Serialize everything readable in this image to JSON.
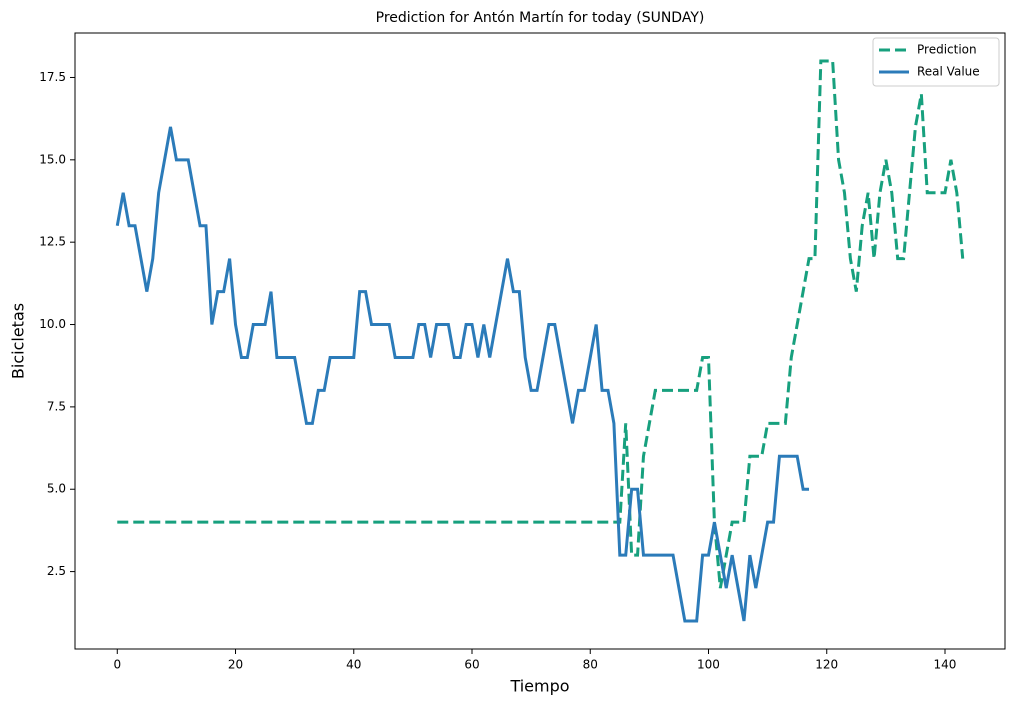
{
  "chart_data": {
    "type": "line",
    "title": "Prediction for Antón Martín for today (SUNDAY)",
    "xlabel": "Tiempo",
    "ylabel": "Bicicletas",
    "x": [
      0,
      1,
      2,
      3,
      4,
      5,
      6,
      7,
      8,
      9,
      10,
      11,
      12,
      13,
      14,
      15,
      16,
      17,
      18,
      19,
      20,
      21,
      22,
      23,
      24,
      25,
      26,
      27,
      28,
      29,
      30,
      31,
      32,
      33,
      34,
      35,
      36,
      37,
      38,
      39,
      40,
      41,
      42,
      43,
      44,
      45,
      46,
      47,
      48,
      49,
      50,
      51,
      52,
      53,
      54,
      55,
      56,
      57,
      58,
      59,
      60,
      61,
      62,
      63,
      64,
      65,
      66,
      67,
      68,
      69,
      70,
      71,
      72,
      73,
      74,
      75,
      76,
      77,
      78,
      79,
      80,
      81,
      82,
      83,
      84,
      85,
      86,
      87,
      88,
      89,
      90,
      91,
      92,
      93,
      94,
      95,
      96,
      97,
      98,
      99,
      100,
      101,
      102,
      103,
      104,
      105,
      106,
      107,
      108,
      109,
      110,
      111,
      112,
      113,
      114,
      115,
      116,
      117,
      118,
      119,
      120,
      121,
      122,
      123,
      124,
      125,
      126,
      127,
      128,
      129,
      130,
      131,
      132,
      133,
      134,
      135,
      136,
      137,
      138,
      139,
      140,
      141,
      142,
      143
    ],
    "series": [
      {
        "name": "Prediction",
        "color": "#17a07e",
        "linestyle": "dashed",
        "values": [
          4,
          4,
          4,
          4,
          4,
          4,
          4,
          4,
          4,
          4,
          4,
          4,
          4,
          4,
          4,
          4,
          4,
          4,
          4,
          4,
          4,
          4,
          4,
          4,
          4,
          4,
          4,
          4,
          4,
          4,
          4,
          4,
          4,
          4,
          4,
          4,
          4,
          4,
          4,
          4,
          4,
          4,
          4,
          4,
          4,
          4,
          4,
          4,
          4,
          4,
          4,
          4,
          4,
          4,
          4,
          4,
          4,
          4,
          4,
          4,
          4,
          4,
          4,
          4,
          4,
          4,
          4,
          4,
          4,
          4,
          4,
          4,
          4,
          4,
          4,
          4,
          4,
          4,
          4,
          4,
          4,
          4,
          4,
          4,
          4,
          4,
          7,
          3,
          3,
          6,
          7,
          8,
          8,
          8,
          8,
          8,
          8,
          8,
          8,
          9,
          9,
          4,
          2,
          3,
          4,
          4,
          4,
          6,
          6,
          6,
          7,
          7,
          7,
          7,
          9,
          10,
          11,
          12,
          12,
          18,
          18,
          18,
          15,
          14,
          12,
          11,
          13,
          14,
          12,
          14,
          15,
          14,
          12,
          12,
          14,
          16,
          17,
          14,
          14,
          14,
          14,
          15,
          14,
          12
        ]
      },
      {
        "name": "Real Value",
        "color": "#2b7bb9",
        "linestyle": "solid",
        "values": [
          13,
          14,
          13,
          13,
          12,
          11,
          12,
          14,
          15,
          16,
          15,
          15,
          15,
          14,
          13,
          13,
          10,
          11,
          11,
          12,
          10,
          9,
          9,
          10,
          10,
          10,
          11,
          9,
          9,
          9,
          9,
          8,
          7,
          7,
          8,
          8,
          9,
          9,
          9,
          9,
          9,
          11,
          11,
          10,
          10,
          10,
          10,
          9,
          9,
          9,
          9,
          10,
          10,
          9,
          10,
          10,
          10,
          9,
          9,
          10,
          10,
          9,
          10,
          9,
          10,
          11,
          12,
          11,
          11,
          9,
          8,
          8,
          9,
          10,
          10,
          9,
          8,
          7,
          8,
          8,
          9,
          10,
          8,
          8,
          7,
          3,
          3,
          5,
          5,
          3,
          3,
          3,
          3,
          3,
          3,
          2,
          1,
          1,
          1,
          3,
          3,
          4,
          3,
          2,
          3,
          2,
          1,
          3,
          2,
          3,
          4,
          4,
          6,
          6,
          6,
          6,
          5,
          5,
          null,
          null,
          null,
          null,
          null,
          null,
          null,
          null,
          null,
          null,
          null,
          null,
          null,
          null,
          null,
          null,
          null,
          null,
          null,
          null,
          null,
          null,
          null,
          null,
          null,
          null
        ]
      }
    ],
    "xlim": [
      -7.15,
      150.15
    ],
    "ylim": [
      0.15,
      18.85
    ],
    "xticks": [
      0,
      20,
      40,
      60,
      80,
      100,
      120,
      140
    ],
    "yticks": [
      2.5,
      {
        "value": 5,
        "label": "5.0"
      },
      7.5,
      {
        "value": 10,
        "label": "10.0"
      },
      12.5,
      {
        "value": 15,
        "label": "15.0"
      },
      17.5
    ],
    "grid": false,
    "legend": "upper right"
  }
}
